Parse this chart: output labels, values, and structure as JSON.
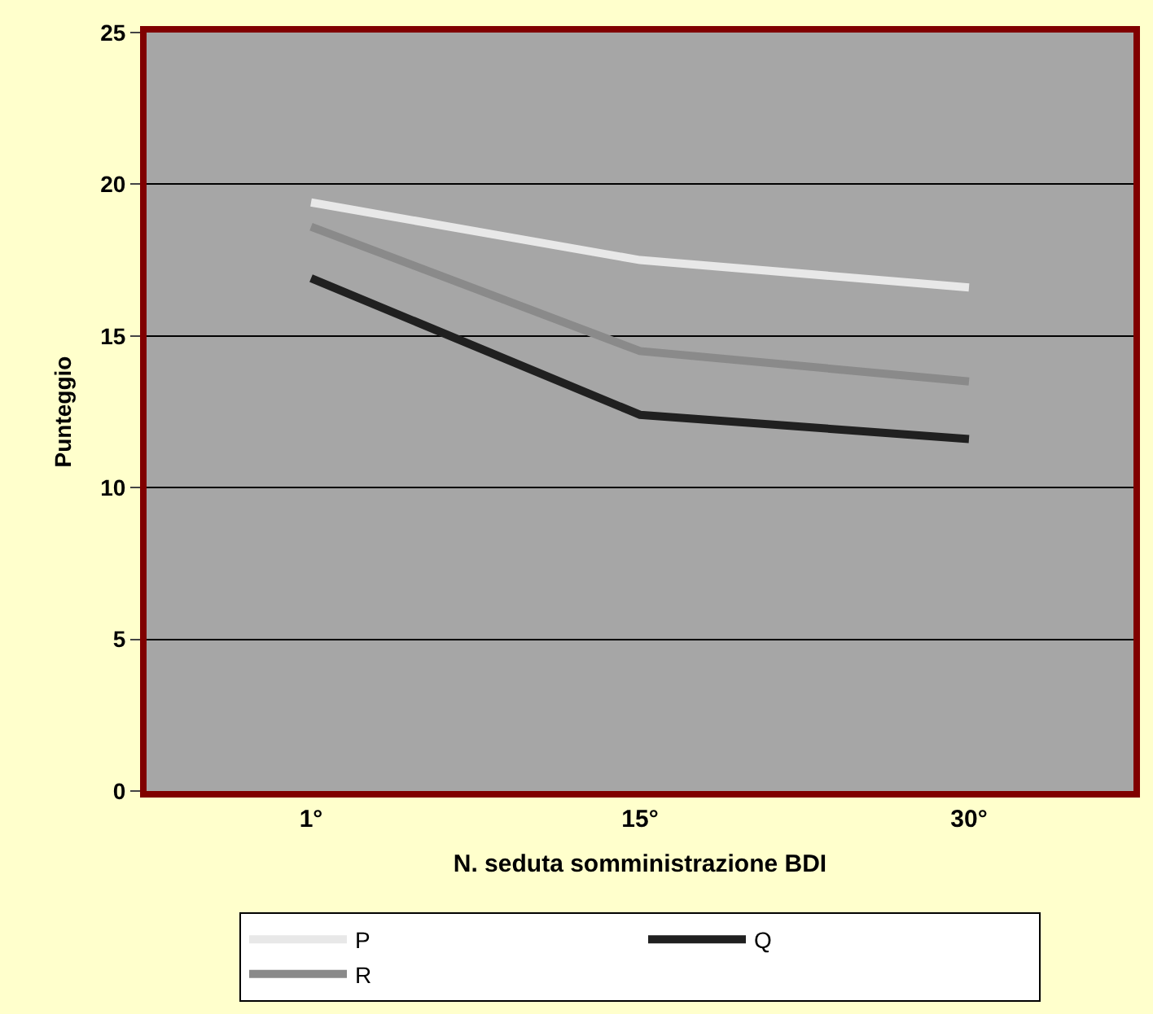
{
  "chart_data": {
    "type": "line",
    "xlabel": "N. seduta somministrazione BDI",
    "ylabel": "Punteggio",
    "categories": [
      "1°",
      "15°",
      "30°"
    ],
    "series": [
      {
        "name": "P",
        "color": "#e8e8e8",
        "values": [
          19.4,
          17.5,
          16.6
        ]
      },
      {
        "name": "Q",
        "color": "#202020",
        "values": [
          16.9,
          12.4,
          11.6
        ]
      },
      {
        "name": "R",
        "color": "#8a8a8a",
        "values": [
          18.6,
          14.5,
          13.5
        ]
      }
    ],
    "ylim": [
      0,
      25
    ],
    "yticks": [
      0,
      5,
      10,
      15,
      20,
      25
    ],
    "grid": "y",
    "legend": "bottom",
    "marker": "none"
  }
}
